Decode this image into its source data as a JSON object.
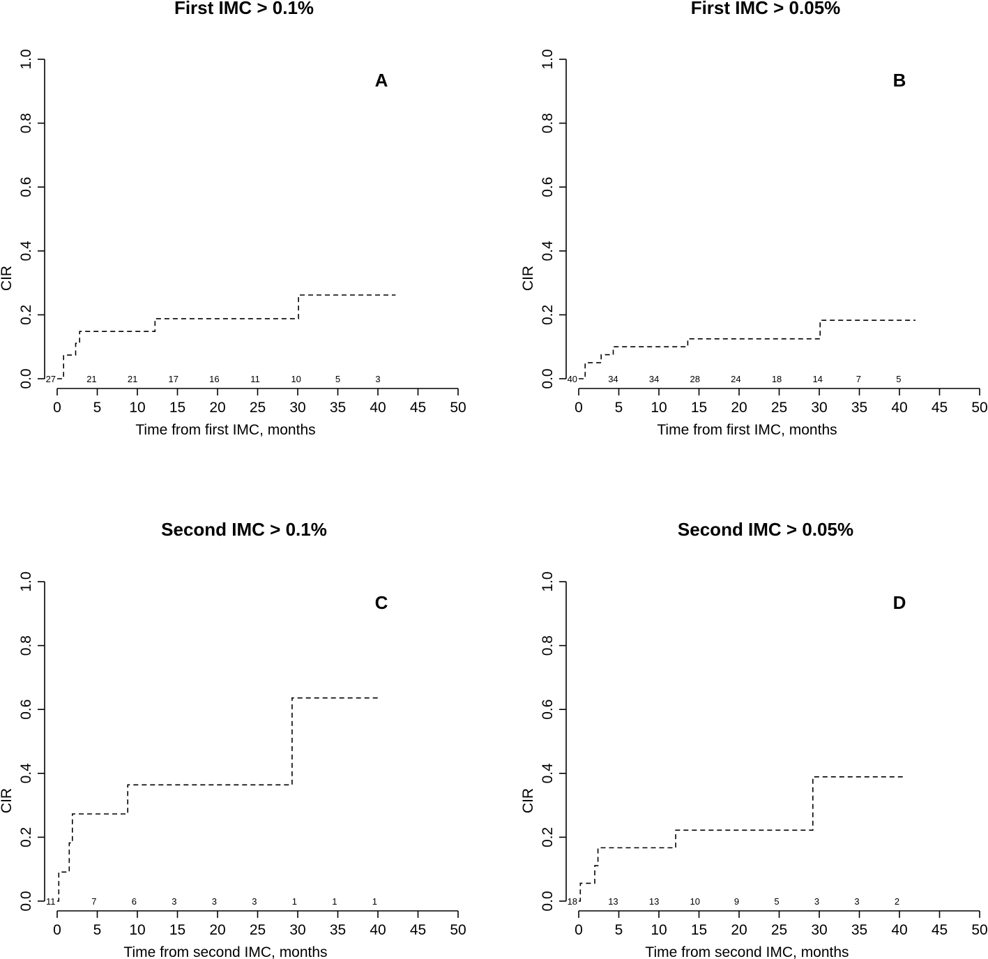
{
  "chart_data": [
    {
      "type": "line",
      "panel": "A",
      "title": "First IMC > 0.1%",
      "xlabel": "Time from first IMC, months",
      "ylabel": "CIR",
      "xlim": [
        0,
        50
      ],
      "ylim": [
        0,
        1
      ],
      "x_ticks": [
        0,
        5,
        10,
        15,
        20,
        25,
        30,
        35,
        40,
        45,
        50
      ],
      "y_ticks": [
        0.0,
        0.2,
        0.4,
        0.6,
        0.8,
        1.0
      ],
      "x_tick_labels": [
        "0",
        "5",
        "10",
        "15",
        "20",
        "25",
        "30",
        "35",
        "40",
        "45",
        "50"
      ],
      "y_tick_labels": [
        "0.0",
        "0.2",
        "0.4",
        "0.6",
        "0.8",
        "1.0"
      ],
      "series": [
        {
          "name": "CIR",
          "style": "dashed-step",
          "x": [
            0,
            0.8,
            2.3,
            2.8,
            12.2,
            30.1,
            42.2
          ],
          "y": [
            0,
            0.074,
            0.111,
            0.148,
            0.188,
            0.262,
            0.262
          ]
        }
      ],
      "at_risk": {
        "x": [
          -0.8,
          4.3,
          9.4,
          14.5,
          19.6,
          24.7,
          29.8,
          35.0,
          40.0
        ],
        "labels": [
          "27",
          "21",
          "21",
          "17",
          "16",
          "11",
          "10",
          "5",
          "3"
        ]
      },
      "grid": false
    },
    {
      "type": "line",
      "panel": "B",
      "title": "First IMC > 0.05%",
      "xlabel": "Time from first IMC, months",
      "ylabel": "CIR",
      "xlim": [
        0,
        50
      ],
      "ylim": [
        0,
        1
      ],
      "x_ticks": [
        0,
        5,
        10,
        15,
        20,
        25,
        30,
        35,
        40,
        45,
        50
      ],
      "y_ticks": [
        0.0,
        0.2,
        0.4,
        0.6,
        0.8,
        1.0
      ],
      "x_tick_labels": [
        "0",
        "5",
        "10",
        "15",
        "20",
        "25",
        "30",
        "35",
        "40",
        "45",
        "50"
      ],
      "y_tick_labels": [
        "0.0",
        "0.2",
        "0.4",
        "0.6",
        "0.8",
        "1.0"
      ],
      "series": [
        {
          "name": "CIR",
          "style": "dashed-step",
          "x": [
            0,
            0.8,
            2.8,
            3.9,
            4.3,
            13.6,
            30.1,
            42.0
          ],
          "y": [
            0,
            0.05,
            0.075,
            0.075,
            0.1,
            0.125,
            0.183,
            0.183
          ]
        }
      ],
      "at_risk": {
        "x": [
          -0.8,
          4.3,
          9.4,
          14.5,
          19.6,
          24.7,
          29.8,
          34.9,
          39.9
        ],
        "labels": [
          "40",
          "34",
          "34",
          "28",
          "24",
          "18",
          "14",
          "7",
          "5"
        ]
      },
      "grid": false
    },
    {
      "type": "line",
      "panel": "C",
      "title": "Second IMC > 0.1%",
      "xlabel": "Time from second IMC, months",
      "ylabel": "CIR",
      "xlim": [
        0,
        50
      ],
      "ylim": [
        0,
        1
      ],
      "x_ticks": [
        0,
        5,
        10,
        15,
        20,
        25,
        30,
        35,
        40,
        45,
        50
      ],
      "y_ticks": [
        0.0,
        0.2,
        0.4,
        0.6,
        0.8,
        1.0
      ],
      "x_tick_labels": [
        "0",
        "5",
        "10",
        "15",
        "20",
        "25",
        "30",
        "35",
        "40",
        "45",
        "50"
      ],
      "y_tick_labels": [
        "0.0",
        "0.2",
        "0.4",
        "0.6",
        "0.8",
        "1.0"
      ],
      "series": [
        {
          "name": "CIR",
          "style": "dashed-step",
          "x": [
            0,
            0.2,
            1.5,
            1.9,
            8.8,
            29.3,
            40.2
          ],
          "y": [
            0,
            0.091,
            0.182,
            0.273,
            0.364,
            0.636,
            0.636
          ]
        }
      ],
      "at_risk": {
        "x": [
          -0.8,
          4.6,
          9.6,
          14.6,
          19.6,
          24.6,
          29.6,
          34.6,
          39.6
        ],
        "labels": [
          "11",
          "7",
          "6",
          "3",
          "3",
          "3",
          "1",
          "1",
          "1"
        ]
      },
      "grid": false
    },
    {
      "type": "line",
      "panel": "D",
      "title": "Second IMC > 0.05%",
      "xlabel": "Time from second IMC, months",
      "ylabel": "CIR",
      "xlim": [
        0,
        50
      ],
      "ylim": [
        0,
        1
      ],
      "x_ticks": [
        0,
        5,
        10,
        15,
        20,
        25,
        30,
        35,
        40,
        45,
        50
      ],
      "y_ticks": [
        0.0,
        0.2,
        0.4,
        0.6,
        0.8,
        1.0
      ],
      "x_tick_labels": [
        "0",
        "5",
        "10",
        "15",
        "20",
        "25",
        "30",
        "35",
        "40",
        "45",
        "50"
      ],
      "y_tick_labels": [
        "0.0",
        "0.2",
        "0.4",
        "0.6",
        "0.8",
        "1.0"
      ],
      "series": [
        {
          "name": "CIR",
          "style": "dashed-step",
          "x": [
            0,
            0.2,
            2.0,
            2.4,
            12.1,
            29.2,
            40.5
          ],
          "y": [
            0,
            0.056,
            0.111,
            0.167,
            0.222,
            0.389,
            0.389
          ]
        }
      ],
      "at_risk": {
        "x": [
          -0.8,
          4.3,
          9.4,
          14.5,
          19.7,
          24.7,
          29.7,
          34.7,
          39.7
        ],
        "labels": [
          "18",
          "13",
          "13",
          "10",
          "9",
          "5",
          "3",
          "3",
          "2"
        ]
      },
      "grid": false
    }
  ]
}
